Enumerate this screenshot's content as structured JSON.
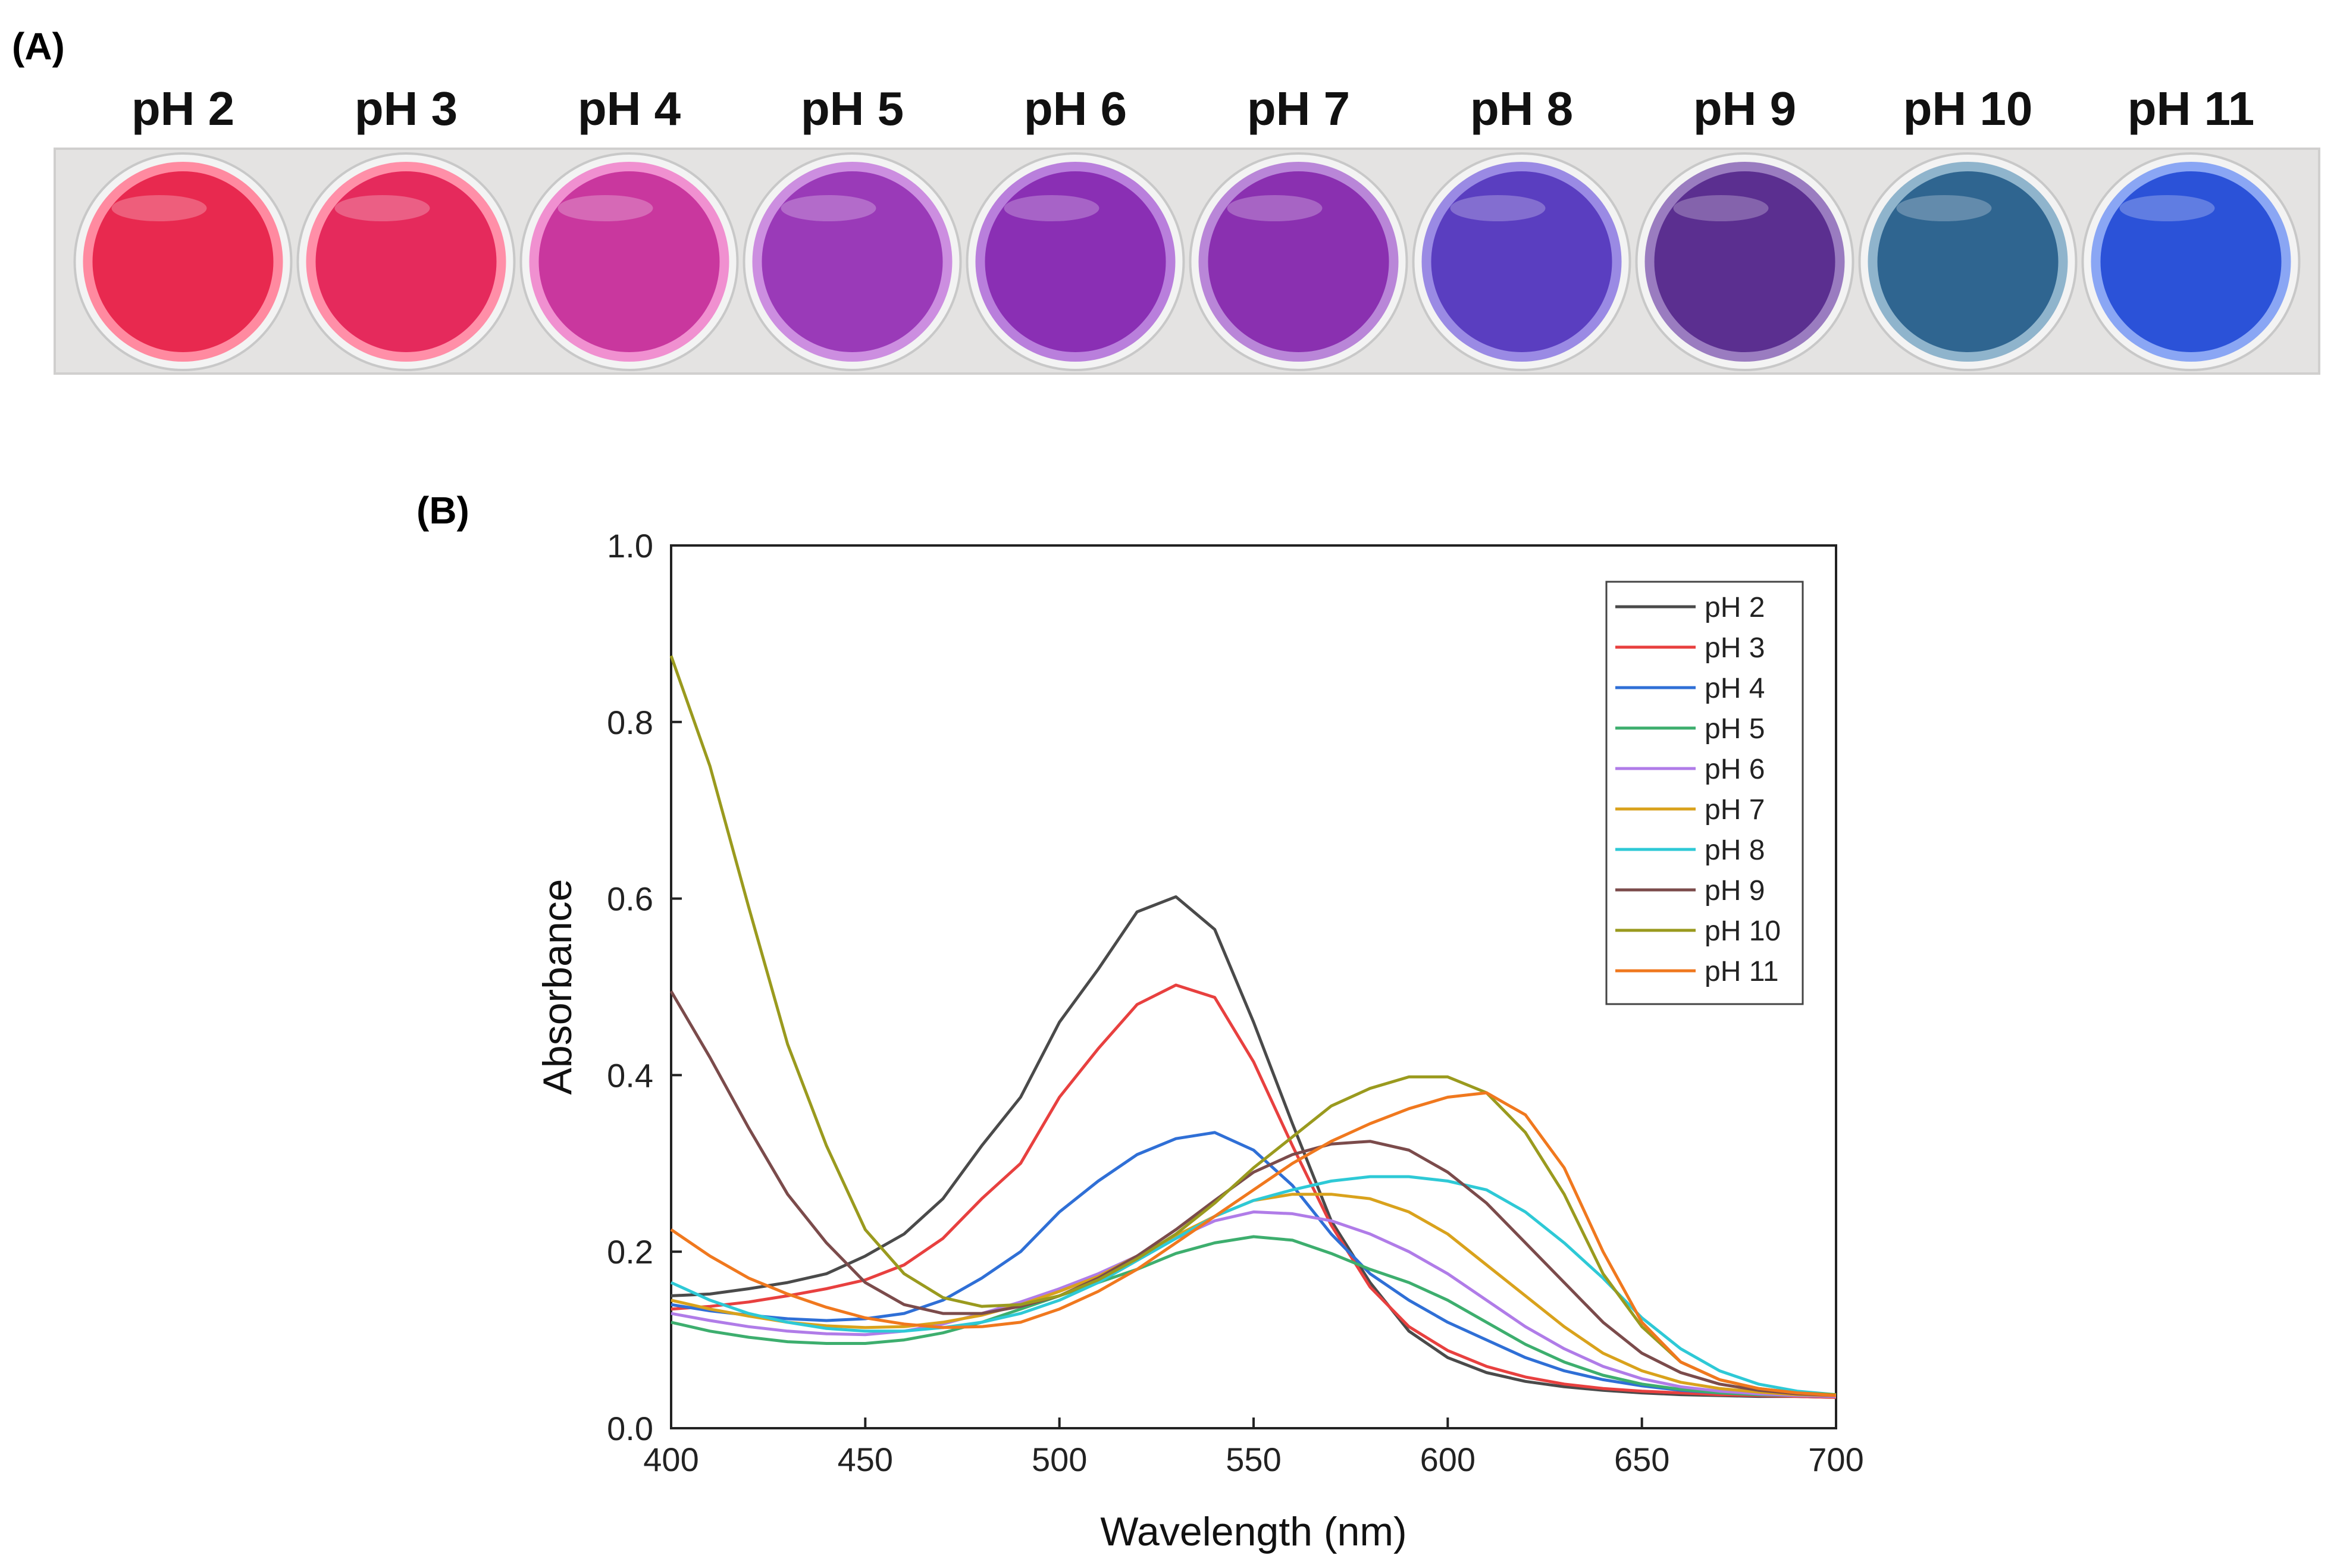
{
  "panel_a": {
    "label": "(A)",
    "wells": [
      {
        "ph": "pH 2",
        "color": "#e8294f",
        "rim": "#ff8aa0"
      },
      {
        "ph": "pH 3",
        "color": "#e52a5c",
        "rim": "#ff8fa8"
      },
      {
        "ph": "pH 4",
        "color": "#c9379e",
        "rim": "#f090d0"
      },
      {
        "ph": "pH 5",
        "color": "#9a3ab8",
        "rim": "#cc8ee0"
      },
      {
        "ph": "pH 6",
        "color": "#8a2fb4",
        "rim": "#b97fdc"
      },
      {
        "ph": "pH 7",
        "color": "#8a30b0",
        "rim": "#b986d8"
      },
      {
        "ph": "pH 8",
        "color": "#5a3ec0",
        "rim": "#9a8ae4"
      },
      {
        "ph": "pH 9",
        "color": "#5b2f90",
        "rim": "#9a7cc0"
      },
      {
        "ph": "pH 10",
        "color": "#2f6590",
        "rim": "#8fb4cc"
      },
      {
        "ph": "pH 11",
        "color": "#2b52d8",
        "rim": "#8aa6f4"
      }
    ]
  },
  "panel_b": {
    "label": "(B)"
  },
  "chart_data": {
    "type": "line",
    "xlabel": "Wavelength (nm)",
    "ylabel": "Absorbance",
    "xlim": [
      400,
      700
    ],
    "ylim": [
      0.0,
      1.0
    ],
    "xticks": [
      400,
      450,
      500,
      550,
      600,
      650,
      700
    ],
    "yticks": [
      0.0,
      0.2,
      0.4,
      0.6,
      0.8,
      1.0
    ],
    "ytick_labels": [
      "0.0",
      "0.2",
      "0.4",
      "0.6",
      "0.8",
      "1.0"
    ],
    "legend_position": "top-right",
    "x": [
      400,
      410,
      420,
      430,
      440,
      450,
      460,
      470,
      480,
      490,
      500,
      510,
      520,
      530,
      540,
      550,
      560,
      570,
      580,
      590,
      600,
      610,
      620,
      630,
      640,
      650,
      660,
      670,
      680,
      690,
      700
    ],
    "series": [
      {
        "name": "pH 2",
        "color": "#4a4a4a",
        "values": [
          0.15,
          0.152,
          0.158,
          0.165,
          0.175,
          0.195,
          0.22,
          0.26,
          0.32,
          0.375,
          0.46,
          0.52,
          0.585,
          0.602,
          0.565,
          0.46,
          0.345,
          0.235,
          0.165,
          0.11,
          0.08,
          0.063,
          0.053,
          0.047,
          0.043,
          0.04,
          0.038,
          0.037,
          0.036,
          0.036,
          0.035
        ]
      },
      {
        "name": "pH 3",
        "color": "#e8403f",
        "values": [
          0.135,
          0.138,
          0.143,
          0.15,
          0.158,
          0.168,
          0.185,
          0.215,
          0.26,
          0.3,
          0.375,
          0.43,
          0.48,
          0.502,
          0.488,
          0.415,
          0.32,
          0.23,
          0.16,
          0.115,
          0.088,
          0.07,
          0.058,
          0.05,
          0.045,
          0.042,
          0.04,
          0.038,
          0.037,
          0.036,
          0.035
        ]
      },
      {
        "name": "pH 4",
        "color": "#2f6fd6",
        "values": [
          0.14,
          0.133,
          0.128,
          0.124,
          0.122,
          0.124,
          0.13,
          0.145,
          0.17,
          0.2,
          0.245,
          0.28,
          0.31,
          0.328,
          0.335,
          0.315,
          0.275,
          0.22,
          0.175,
          0.145,
          0.12,
          0.1,
          0.08,
          0.065,
          0.055,
          0.048,
          0.043,
          0.04,
          0.038,
          0.037,
          0.036
        ]
      },
      {
        "name": "pH 5",
        "color": "#3dae6e",
        "values": [
          0.12,
          0.11,
          0.103,
          0.098,
          0.096,
          0.096,
          0.1,
          0.108,
          0.12,
          0.135,
          0.15,
          0.165,
          0.18,
          0.198,
          0.21,
          0.217,
          0.213,
          0.198,
          0.18,
          0.165,
          0.145,
          0.12,
          0.095,
          0.075,
          0.06,
          0.05,
          0.044,
          0.04,
          0.038,
          0.037,
          0.036
        ]
      },
      {
        "name": "pH 6",
        "color": "#b07ce8",
        "values": [
          0.13,
          0.122,
          0.115,
          0.11,
          0.107,
          0.106,
          0.11,
          0.118,
          0.13,
          0.143,
          0.158,
          0.175,
          0.195,
          0.215,
          0.235,
          0.245,
          0.243,
          0.235,
          0.22,
          0.2,
          0.175,
          0.145,
          0.115,
          0.09,
          0.07,
          0.056,
          0.047,
          0.042,
          0.039,
          0.037,
          0.036
        ]
      },
      {
        "name": "pH 7",
        "color": "#d9a21c",
        "values": [
          0.145,
          0.135,
          0.127,
          0.12,
          0.116,
          0.114,
          0.115,
          0.12,
          0.128,
          0.14,
          0.155,
          0.172,
          0.195,
          0.218,
          0.24,
          0.258,
          0.265,
          0.265,
          0.26,
          0.245,
          0.22,
          0.185,
          0.15,
          0.115,
          0.085,
          0.065,
          0.052,
          0.045,
          0.041,
          0.038,
          0.037
        ]
      },
      {
        "name": "pH 8",
        "color": "#2ec9d6",
        "values": [
          0.165,
          0.145,
          0.13,
          0.12,
          0.113,
          0.11,
          0.11,
          0.114,
          0.12,
          0.13,
          0.145,
          0.165,
          0.19,
          0.215,
          0.24,
          0.258,
          0.27,
          0.28,
          0.285,
          0.285,
          0.28,
          0.27,
          0.245,
          0.21,
          0.17,
          0.125,
          0.09,
          0.065,
          0.05,
          0.042,
          0.038
        ]
      },
      {
        "name": "pH 9",
        "color": "#7b4b4b",
        "values": [
          0.495,
          0.42,
          0.34,
          0.265,
          0.21,
          0.165,
          0.14,
          0.13,
          0.13,
          0.138,
          0.15,
          0.17,
          0.195,
          0.225,
          0.258,
          0.29,
          0.31,
          0.322,
          0.325,
          0.315,
          0.29,
          0.255,
          0.21,
          0.165,
          0.12,
          0.085,
          0.063,
          0.05,
          0.043,
          0.039,
          0.037
        ]
      },
      {
        "name": "pH 10",
        "color": "#9a9a1e",
        "values": [
          0.875,
          0.75,
          0.59,
          0.435,
          0.32,
          0.225,
          0.175,
          0.148,
          0.138,
          0.14,
          0.15,
          0.168,
          0.192,
          0.22,
          0.255,
          0.295,
          0.33,
          0.365,
          0.385,
          0.398,
          0.398,
          0.38,
          0.335,
          0.265,
          0.175,
          0.115,
          0.075,
          0.055,
          0.045,
          0.04,
          0.038
        ]
      },
      {
        "name": "pH 11",
        "color": "#f0781e",
        "values": [
          0.225,
          0.195,
          0.17,
          0.152,
          0.137,
          0.125,
          0.118,
          0.114,
          0.115,
          0.12,
          0.135,
          0.155,
          0.18,
          0.21,
          0.24,
          0.27,
          0.3,
          0.325,
          0.345,
          0.362,
          0.375,
          0.38,
          0.355,
          0.295,
          0.2,
          0.12,
          0.075,
          0.055,
          0.045,
          0.04,
          0.037
        ]
      }
    ]
  }
}
